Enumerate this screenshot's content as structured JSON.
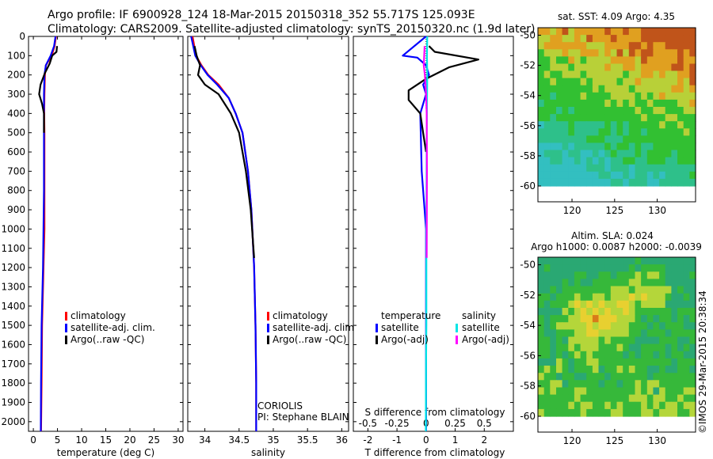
{
  "header": {
    "title_line1": "Argo profile: IF 6900928_124 18-Mar-2015 20150318_352 55.717S 125.093E",
    "title_line2": "Climatology: CARS2009. Satellite-adjusted climatology: synTS_20150320.nc (1.9d later)"
  },
  "colors": {
    "climatology": "#ff0000",
    "satellite": "#0000ff",
    "argo": "#000000",
    "salinity_satellite": "#00e5e5",
    "salinity_argo": "#ff00ff"
  },
  "chart_data": [
    {
      "type": "line",
      "id": "temperature",
      "xlabel": "temperature (deg C)",
      "ylabel": "",
      "xlim": [
        -1,
        31
      ],
      "ylim": [
        2050,
        0
      ],
      "xticks": [
        0,
        5,
        10,
        15,
        20,
        25,
        30
      ],
      "yticks": [
        0,
        100,
        200,
        300,
        400,
        500,
        600,
        700,
        800,
        900,
        1000,
        1100,
        1200,
        1300,
        1400,
        1500,
        1600,
        1700,
        1800,
        1900,
        2000
      ],
      "legend": [
        "climatology",
        "satellite-adj. clim.",
        "Argo(..raw -QC)"
      ],
      "series": [
        {
          "name": "climatology",
          "color": "#ff0000",
          "x": [
            4.7,
            4.4,
            3.8,
            2.6,
            2.4,
            2.3,
            2.25,
            2.3,
            2.3,
            2.3,
            2.3,
            2.1,
            1.8,
            1.7,
            1.6
          ],
          "y": [
            0,
            50,
            100,
            150,
            200,
            300,
            400,
            500,
            700,
            800,
            1000,
            1200,
            1500,
            1800,
            2050
          ]
        },
        {
          "name": "satellite-adj. clim.",
          "color": "#0000ff",
          "x": [
            4.6,
            4.3,
            3.6,
            2.6,
            2.3,
            2.2,
            2.2,
            2.2,
            2.2,
            2.2,
            2.1,
            2.0,
            1.7,
            1.6,
            1.55
          ],
          "y": [
            0,
            50,
            100,
            150,
            200,
            300,
            400,
            500,
            700,
            800,
            1000,
            1200,
            1500,
            1800,
            2050
          ]
        },
        {
          "name": "Argo(..raw -QC)",
          "color": "#000000",
          "x": [
            4.9,
            4.8,
            3.9,
            3.4,
            2.4,
            1.5,
            1.2,
            1.8,
            2.2,
            2.2
          ],
          "y": [
            50,
            80,
            100,
            140,
            190,
            250,
            300,
            350,
            400,
            500
          ]
        }
      ]
    },
    {
      "type": "line",
      "id": "salinity",
      "xlabel": "salinity",
      "ylabel": "",
      "xlim": [
        33.75,
        36.1
      ],
      "ylim": [
        2050,
        0
      ],
      "xticks": [
        34,
        34.5,
        35,
        35.5,
        36
      ],
      "legend": [
        "climatology",
        "satellite-adj. clim.",
        "Argo(..raw -QC)"
      ],
      "annotation": [
        "CORIOLIS",
        "PI: Stephane BLAIN"
      ],
      "series": [
        {
          "name": "climatology",
          "color": "#ff0000",
          "x": [
            33.82,
            33.87,
            33.95,
            34.05,
            34.2,
            34.35,
            34.45,
            34.55,
            34.63,
            34.68,
            34.72,
            34.74,
            34.75,
            34.75
          ],
          "y": [
            0,
            100,
            150,
            200,
            250,
            320,
            400,
            500,
            700,
            900,
            1200,
            1500,
            1800,
            2050
          ]
        },
        {
          "name": "satellite-adj. clim.",
          "color": "#0000ff",
          "x": [
            33.8,
            33.86,
            33.94,
            34.04,
            34.18,
            34.35,
            34.45,
            34.55,
            34.63,
            34.68,
            34.72,
            34.74,
            34.75,
            34.75
          ],
          "y": [
            0,
            100,
            150,
            200,
            250,
            320,
            400,
            500,
            700,
            900,
            1200,
            1500,
            1800,
            2050
          ]
        },
        {
          "name": "Argo(..raw -QC)",
          "color": "#000000",
          "x": [
            33.85,
            33.88,
            33.93,
            33.9,
            34.0,
            34.2,
            34.38,
            34.5,
            34.6,
            34.67,
            34.71,
            34.72
          ],
          "y": [
            50,
            100,
            150,
            200,
            250,
            300,
            400,
            500,
            700,
            900,
            1100,
            1150
          ]
        }
      ]
    },
    {
      "type": "line",
      "id": "differences",
      "xlabel": "T difference from climatology",
      "top_axis_label": "S difference from climatology",
      "xlim": [
        -2.5,
        3.0
      ],
      "ylim": [
        2050,
        0
      ],
      "xticks": [
        -2,
        -1,
        0,
        1,
        2
      ],
      "top_ticks": [
        "-0.5",
        "-0.25",
        "0",
        "0.25",
        "0.5"
      ],
      "top_lim": [
        -0.625,
        0.75
      ],
      "legend_temperature": [
        "temperature",
        "satellite",
        "Argo(-adj)"
      ],
      "legend_salinity": [
        "salinity",
        "satellite",
        "Argo(-adj)"
      ],
      "series": [
        {
          "name": "temperature satellite",
          "color": "#0000ff",
          "x": [
            0.0,
            -0.8,
            -0.3,
            0.0,
            0.1,
            -0.1,
            0.0,
            -0.2,
            -0.15,
            0.0,
            0.0
          ],
          "y": [
            0,
            100,
            110,
            150,
            200,
            250,
            300,
            400,
            700,
            1000,
            2050
          ]
        },
        {
          "name": "temperature Argo(-adj)",
          "color": "#000000",
          "x": [
            0.1,
            0.3,
            1.8,
            0.8,
            0.0,
            -0.6,
            -0.6,
            -0.2,
            -0.1,
            0.0
          ],
          "y": [
            50,
            80,
            120,
            160,
            220,
            280,
            330,
            400,
            500,
            600
          ]
        },
        {
          "name": "salinity satellite",
          "color": "#00e5e5",
          "x": [
            0.04,
            0.03,
            0.04,
            0.02,
            0.01,
            0.01,
            0.0,
            -0.005,
            -0.01
          ],
          "y": [
            0,
            100,
            200,
            500,
            1000,
            1500,
            1700,
            1900,
            2050
          ]
        },
        {
          "name": "salinity Argo(-adj)",
          "color": "#ff00ff",
          "x": [
            -0.05,
            -0.08,
            -0.04,
            -0.02,
            0.0,
            0.02,
            0.03,
            0.025,
            0.02
          ],
          "y": [
            50,
            150,
            200,
            250,
            300,
            400,
            700,
            1000,
            1150
          ]
        }
      ]
    },
    {
      "type": "heatmap",
      "id": "sst-map",
      "title": "sat. SST: 4.09 Argo: 4.35",
      "xlim": [
        116,
        134.5
      ],
      "ylim": [
        -60,
        -49.5
      ],
      "xticks": [
        120,
        125,
        130
      ],
      "yticks": [
        -50,
        -52,
        -54,
        -56,
        -58,
        -60
      ]
    },
    {
      "type": "heatmap",
      "id": "sla-map",
      "title_line1": "Altim. SLA: 0.024",
      "title_line2": "Argo h1000: 0.0087 h2000: -0.0039",
      "xlim": [
        116,
        134.5
      ],
      "ylim": [
        -60,
        -49.5
      ],
      "xticks": [
        120,
        125,
        130
      ],
      "yticks": [
        -50,
        -52,
        -54,
        -56,
        -58,
        -60
      ]
    }
  ],
  "footer": {
    "credit": "©IMOS 29-Mar-2015 20:38:34"
  }
}
